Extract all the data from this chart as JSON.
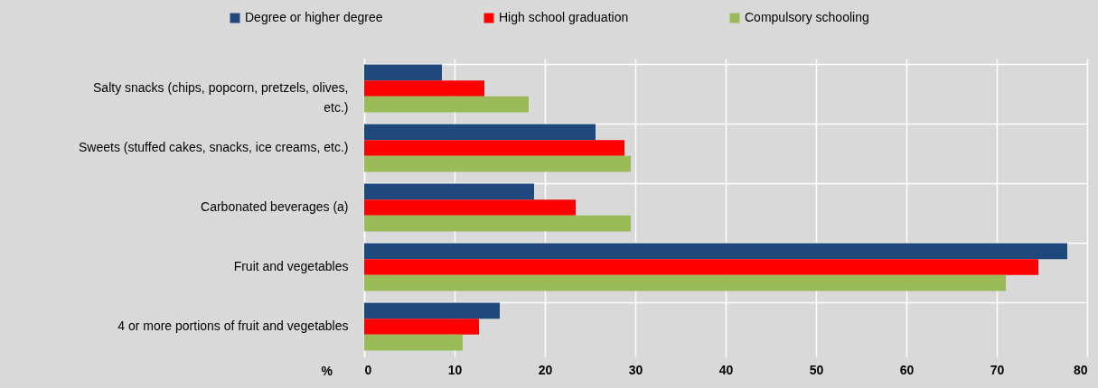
{
  "chart_data": {
    "type": "bar",
    "orientation": "horizontal",
    "xlabel": "%",
    "categories": [
      "Salty snacks (chips, popcorn, pretzels, olives, etc.)",
      "Sweets (stuffed cakes, snacks, ice creams, etc.)",
      "Carbonated beverages (a)",
      "Fruit and vegetables",
      "4 or more portions of fruit and vegetables"
    ],
    "series": [
      {
        "name": "Degree or higher degree",
        "color": "#1f497d",
        "values": [
          8.6,
          25.6,
          18.8,
          77.8,
          15.0
        ]
      },
      {
        "name": "High school graduation",
        "color": "#ff0000",
        "values": [
          13.3,
          28.8,
          23.4,
          74.6,
          12.7
        ]
      },
      {
        "name": "Compulsory schooling",
        "color": "#9bbb59",
        "values": [
          18.2,
          29.5,
          29.5,
          71.0,
          10.9
        ]
      }
    ],
    "xlim": [
      0,
      80
    ],
    "xticks": [
      0,
      10,
      20,
      30,
      40,
      50,
      60,
      70,
      80
    ],
    "grid": true,
    "legend": "top"
  }
}
